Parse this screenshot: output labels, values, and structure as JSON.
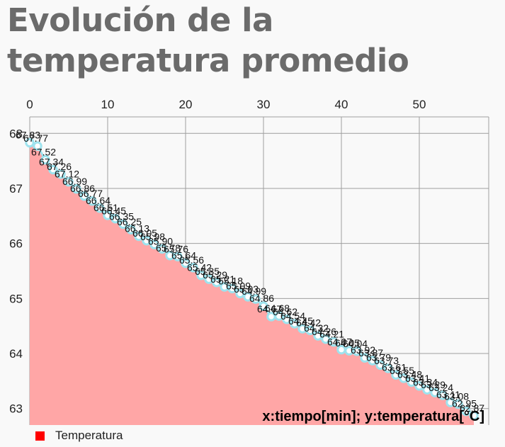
{
  "title": "Evolución de la temperatura promedio",
  "chart_data": {
    "type": "area",
    "title": "Evolución de la temperatura promedio",
    "caption": "x:tiempo[min]; y:temperatura[°C]",
    "xlabel": "tiempo[min]",
    "ylabel": "temperatura[°C]",
    "xlim": [
      0,
      59
    ],
    "ylim": [
      62.7,
      68.3
    ],
    "x_ticks": [
      0,
      10,
      20,
      30,
      40,
      50
    ],
    "y_ticks": [
      63,
      64,
      65,
      66,
      67,
      68
    ],
    "x_axis_position": "top",
    "grid": true,
    "legend_position": "bottom-left",
    "colors": {
      "fill": "#ffa6a6",
      "marker_stroke": "#9ee3ee",
      "marker_fill": "#ffffff",
      "legend": "#ff0000"
    },
    "series": [
      {
        "name": "Temperatura",
        "x": [
          0,
          1,
          2,
          3,
          4,
          5,
          6,
          7,
          8,
          9,
          10,
          11,
          12,
          13,
          14,
          15,
          16,
          17,
          18,
          19,
          20,
          21,
          22,
          23,
          24,
          25,
          26,
          27,
          28,
          29,
          30,
          31,
          32,
          33,
          34,
          35,
          36,
          37,
          38,
          39,
          40,
          41,
          42,
          43,
          44,
          45,
          46,
          47,
          48,
          49,
          50,
          51,
          52,
          53,
          54,
          55,
          56,
          57
        ],
        "values": [
          67.83,
          67.77,
          67.52,
          67.34,
          67.26,
          67.12,
          66.99,
          66.86,
          66.77,
          66.64,
          66.51,
          66.45,
          66.35,
          66.25,
          66.13,
          66.05,
          65.98,
          65.9,
          65.78,
          65.76,
          65.64,
          65.56,
          65.42,
          65.35,
          65.29,
          65.21,
          65.18,
          65.09,
          65.03,
          64.99,
          64.86,
          64.67,
          64.68,
          64.62,
          64.54,
          64.45,
          64.42,
          64.32,
          64.26,
          64.21,
          64.07,
          64.05,
          64.04,
          63.92,
          63.87,
          63.79,
          63.73,
          63.61,
          63.55,
          63.48,
          63.41,
          63.34,
          63.29,
          63.24,
          63.11,
          63.08,
          62.95,
          62.87
        ],
        "labels": [
          "67.83",
          "67.77",
          "67.52",
          "67.34",
          "67.26",
          "67.12",
          "66.99",
          "66.86",
          "66.77",
          "66.64",
          "66.51",
          "66.45",
          "66.35",
          "66.25",
          "66.13",
          "66.05",
          "65.98",
          "65.90",
          "65.78",
          "65.76",
          "65.64",
          "65.56",
          "65.42",
          "65.35",
          "65.29",
          "65.21",
          "65.18",
          "65.09",
          "65.03",
          "64.99",
          "64.86",
          "64.67",
          "64.68",
          "64.62",
          "64.54",
          "64.45",
          "64.42",
          "64.32",
          "64.26",
          "64.21",
          "64.07",
          "64.05",
          "64.04",
          "63.92",
          "63.87",
          "63.79",
          "63.73",
          "63.61",
          "63.55",
          "63.48",
          "63.41",
          "63.34",
          "63.29",
          "63.24",
          "63.11",
          "63.08",
          "62.95",
          "62.87"
        ]
      }
    ]
  }
}
